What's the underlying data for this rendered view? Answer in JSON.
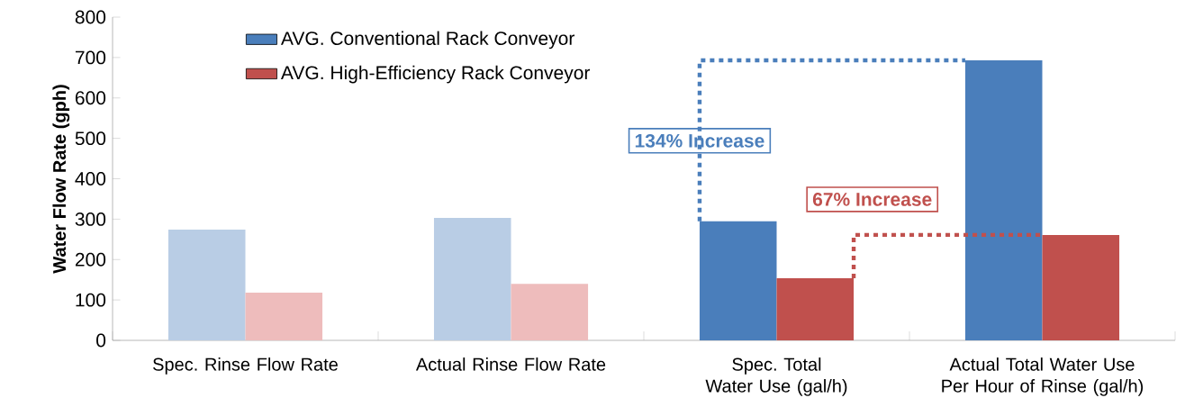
{
  "chart_data": {
    "type": "bar",
    "ylabel": "Water Flow Rate (gph)",
    "categories": [
      "Spec. Rinse Flow Rate",
      "Actual Rinse Flow Rate",
      "Spec. Total Water Use (gal/h)",
      "Actual Total Water Use Per Hour of Rinse (gal/h)"
    ],
    "series": [
      {
        "name": "AVG. Conventional Rack Conveyor",
        "color": "#4a7ebb",
        "colors": [
          "#b9cde5",
          "#b9cde5",
          "#4a7ebb",
          "#4a7ebb"
        ],
        "values": [
          274,
          303,
          295,
          693
        ]
      },
      {
        "name": "AVG. High-Efficiency Rack Conveyor",
        "color": "#c0504d",
        "colors": [
          "#eebcbc",
          "#eebcbc",
          "#c0504d",
          "#c0504d"
        ],
        "values": [
          118,
          140,
          154,
          261
        ]
      }
    ],
    "ylim": [
      0,
      800
    ],
    "yticks": [
      0,
      100,
      200,
      300,
      400,
      500,
      600,
      700,
      800
    ],
    "legend": "top left",
    "grid": false,
    "annotations": [
      "134% Increase",
      "67% Increase"
    ]
  }
}
